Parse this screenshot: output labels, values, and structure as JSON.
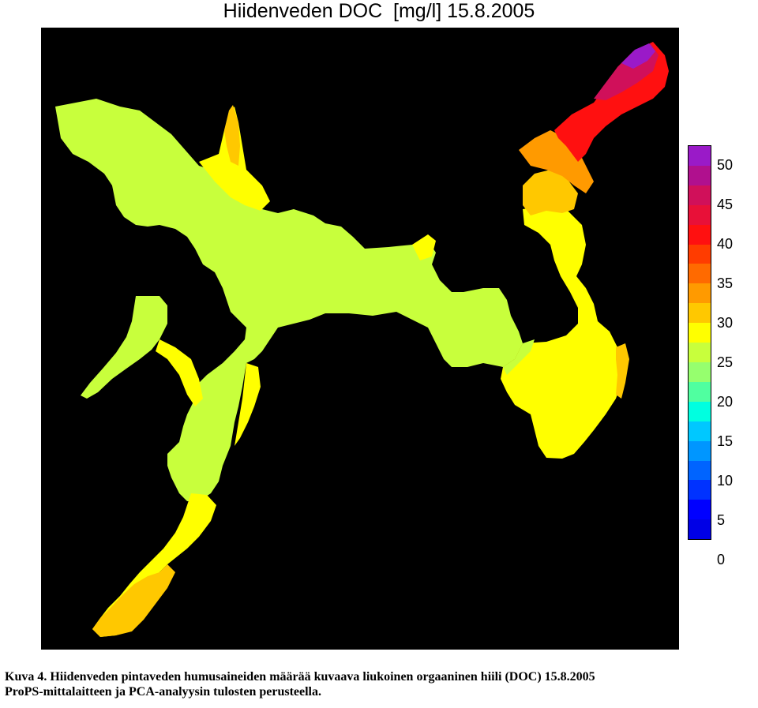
{
  "title": "Hiidenveden DOC  [mg/l] 15.8.2005",
  "legend": {
    "labels": [
      "50",
      "45",
      "40",
      "35",
      "30",
      "25",
      "20",
      "15",
      "10",
      "5",
      "0"
    ],
    "min": 0,
    "max": 50,
    "step": 2.5,
    "colors_top_to_bottom": [
      "#9a1ac8",
      "#b0108e",
      "#d0105a",
      "#e81038",
      "#ff1010",
      "#ff3c00",
      "#ff6a00",
      "#ff9a00",
      "#ffc800",
      "#ffff00",
      "#c8ff3c",
      "#96ff6e",
      "#50ffa0",
      "#00ffe0",
      "#00c8ff",
      "#0096ff",
      "#0064ff",
      "#0032ff",
      "#0000ff",
      "#0000e6"
    ]
  },
  "map": {
    "background": "#000000",
    "lake_colors": {
      "main_basin": "#c8ff3c",
      "south_arm": "#ffff00",
      "north_east": "#ff1010"
    }
  },
  "caption": {
    "line1": "Kuva 4. Hiidenveden pintaveden humusaineiden määrää kuvaava liukoinen orgaaninen hiili (DOC) 15.8.2005",
    "line2": "ProPS-mittalaitteen ja PCA-analyysin tulosten perusteella."
  }
}
